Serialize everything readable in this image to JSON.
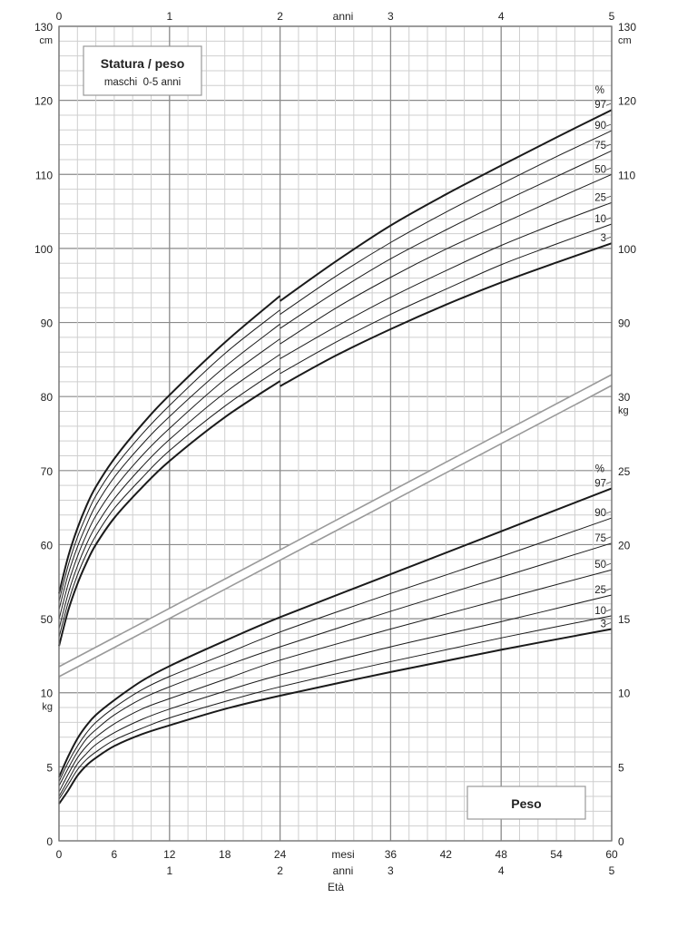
{
  "chart_data": {
    "type": "line",
    "title": "Statura / peso",
    "subtitle": "maschi  0-5 anni",
    "weight_box_label": "Peso",
    "xlabel": "Età",
    "xlim_months": [
      0,
      60
    ],
    "x_month_ticks": [
      "0",
      "6",
      "12",
      "18",
      "24",
      "mesi",
      "36",
      "42",
      "48",
      "54",
      "60"
    ],
    "x_month_tick_values": [
      0,
      6,
      12,
      18,
      24,
      null,
      36,
      42,
      48,
      54,
      60
    ],
    "x_year_ticks_bottom": [
      "1",
      "2",
      "anni",
      "3",
      "4",
      "5"
    ],
    "x_year_ticks_bottom_values": [
      1,
      2,
      null,
      3,
      4,
      5
    ],
    "x_year_ticks_top": [
      "0",
      "1",
      "2",
      "anni",
      "3",
      "4",
      "5"
    ],
    "x_year_ticks_top_values": [
      0,
      1,
      2,
      null,
      3,
      4,
      5
    ],
    "left_ticks": [
      {
        "label": "130",
        "value": 130,
        "scale": "cm",
        "unit": "cm"
      },
      {
        "label": "120",
        "value": 120,
        "scale": "cm"
      },
      {
        "label": "110",
        "value": 110,
        "scale": "cm"
      },
      {
        "label": "100",
        "value": 100,
        "scale": "cm"
      },
      {
        "label": "90",
        "value": 90,
        "scale": "cm"
      },
      {
        "label": "80",
        "value": 80,
        "scale": "cm"
      },
      {
        "label": "70",
        "value": 70,
        "scale": "cm"
      },
      {
        "label": "60",
        "value": 60,
        "scale": "cm"
      },
      {
        "label": "50",
        "value": 50,
        "scale": "cm"
      },
      {
        "label": "10",
        "value": 10,
        "scale": "kg",
        "unit": "kg"
      },
      {
        "label": "5",
        "value": 5,
        "scale": "kg"
      },
      {
        "label": "0",
        "value": 0,
        "scale": "kg"
      }
    ],
    "right_ticks": [
      {
        "label": "130",
        "value": 130,
        "scale": "cm",
        "unit": "cm"
      },
      {
        "label": "120",
        "value": 120,
        "scale": "cm"
      },
      {
        "label": "110",
        "value": 110,
        "scale": "cm"
      },
      {
        "label": "100",
        "value": 100,
        "scale": "cm"
      },
      {
        "label": "90",
        "value": 90,
        "scale": "cm"
      },
      {
        "label": "30",
        "value": 30,
        "scale": "kg",
        "unit": "kg"
      },
      {
        "label": "25",
        "value": 25,
        "scale": "kg"
      },
      {
        "label": "20",
        "value": 20,
        "scale": "kg"
      },
      {
        "label": "15",
        "value": 15,
        "scale": "kg"
      },
      {
        "label": "10",
        "value": 10,
        "scale": "kg"
      },
      {
        "label": "5",
        "value": 5,
        "scale": "kg"
      },
      {
        "label": "0",
        "value": 0,
        "scale": "kg"
      }
    ],
    "percent_symbol": "%",
    "height_cm": {
      "months_a": [
        0,
        1,
        2,
        3,
        4,
        6,
        9,
        12,
        18,
        24
      ],
      "months_b": [
        24,
        30,
        36,
        42,
        48,
        54,
        60
      ],
      "series": [
        {
          "name": "3",
          "a": [
            46.3,
            51.1,
            54.7,
            57.6,
            60.0,
            63.6,
            67.7,
            71.3,
            77.2,
            82.1
          ],
          "b": [
            81.4,
            85.5,
            89.1,
            92.4,
            95.4,
            98.1,
            100.7
          ]
        },
        {
          "name": "10",
          "a": [
            47.5,
            52.2,
            55.9,
            58.8,
            61.2,
            64.9,
            69.0,
            72.7,
            78.7,
            83.8
          ],
          "b": [
            83.1,
            87.3,
            91.1,
            94.5,
            97.8,
            100.6,
            103.3
          ]
        },
        {
          "name": "25",
          "a": [
            48.6,
            53.4,
            57.1,
            60.1,
            62.5,
            66.2,
            70.5,
            74.2,
            80.5,
            85.7
          ],
          "b": [
            85.1,
            89.4,
            93.4,
            97.0,
            100.4,
            103.4,
            106.2
          ]
        },
        {
          "name": "50",
          "a": [
            49.9,
            54.7,
            58.4,
            61.4,
            63.9,
            67.6,
            72.0,
            75.7,
            82.3,
            87.8
          ],
          "b": [
            87.1,
            91.9,
            96.1,
            99.9,
            103.3,
            106.7,
            110.0
          ]
        },
        {
          "name": "75",
          "a": [
            51.2,
            56.0,
            59.7,
            62.7,
            65.3,
            69.1,
            73.5,
            77.3,
            84.0,
            89.8
          ],
          "b": [
            89.2,
            94.1,
            98.6,
            102.5,
            106.2,
            109.7,
            113.2
          ]
        },
        {
          "name": "90",
          "a": [
            52.3,
            57.2,
            61.0,
            64.0,
            66.6,
            70.4,
            74.9,
            78.8,
            85.8,
            91.7
          ],
          "b": [
            91.1,
            96.2,
            100.8,
            104.9,
            108.7,
            112.4,
            115.9
          ]
        },
        {
          "name": "97",
          "a": [
            53.4,
            58.4,
            62.2,
            65.3,
            67.8,
            71.6,
            76.2,
            80.2,
            87.3,
            93.6
          ],
          "b": [
            92.9,
            98.2,
            103.1,
            107.3,
            111.2,
            115.0,
            118.7
          ]
        }
      ]
    },
    "weight_kg": {
      "months": [
        0,
        1,
        2,
        3,
        4,
        6,
        9,
        12,
        18,
        24,
        36,
        48,
        60
      ],
      "series": [
        {
          "name": "3",
          "values": [
            2.5,
            3.4,
            4.4,
            5.1,
            5.6,
            6.4,
            7.2,
            7.8,
            8.9,
            9.8,
            11.4,
            12.9,
            14.3
          ]
        },
        {
          "name": "10",
          "values": [
            2.8,
            3.8,
            4.8,
            5.5,
            6.0,
            6.8,
            7.6,
            8.3,
            9.4,
            10.4,
            12.1,
            13.7,
            15.2
          ]
        },
        {
          "name": "25",
          "values": [
            3.0,
            4.1,
            5.2,
            5.9,
            6.5,
            7.3,
            8.2,
            8.9,
            10.1,
            11.2,
            13.1,
            14.8,
            16.6
          ]
        },
        {
          "name": "50",
          "values": [
            3.3,
            4.5,
            5.6,
            6.4,
            7.0,
            7.9,
            8.9,
            9.6,
            10.9,
            12.2,
            14.3,
            16.3,
            18.3
          ]
        },
        {
          "name": "75",
          "values": [
            3.7,
            4.9,
            6.0,
            6.9,
            7.5,
            8.5,
            9.6,
            10.4,
            11.8,
            13.1,
            15.5,
            17.8,
            20.1
          ]
        },
        {
          "name": "90",
          "values": [
            4.0,
            5.3,
            6.4,
            7.3,
            8.0,
            9.0,
            10.2,
            11.1,
            12.6,
            14.1,
            16.7,
            19.2,
            21.8
          ]
        },
        {
          "name": "97",
          "values": [
            4.3,
            5.7,
            6.9,
            7.8,
            8.5,
            9.5,
            10.8,
            11.8,
            13.5,
            15.1,
            18.0,
            20.9,
            23.8
          ]
        }
      ]
    },
    "colors": {
      "grid_minor": "#cfcfcf",
      "grid_major": "#8a8a8a",
      "curve": "#1a1a1a",
      "band": "#9a9a9a"
    }
  }
}
